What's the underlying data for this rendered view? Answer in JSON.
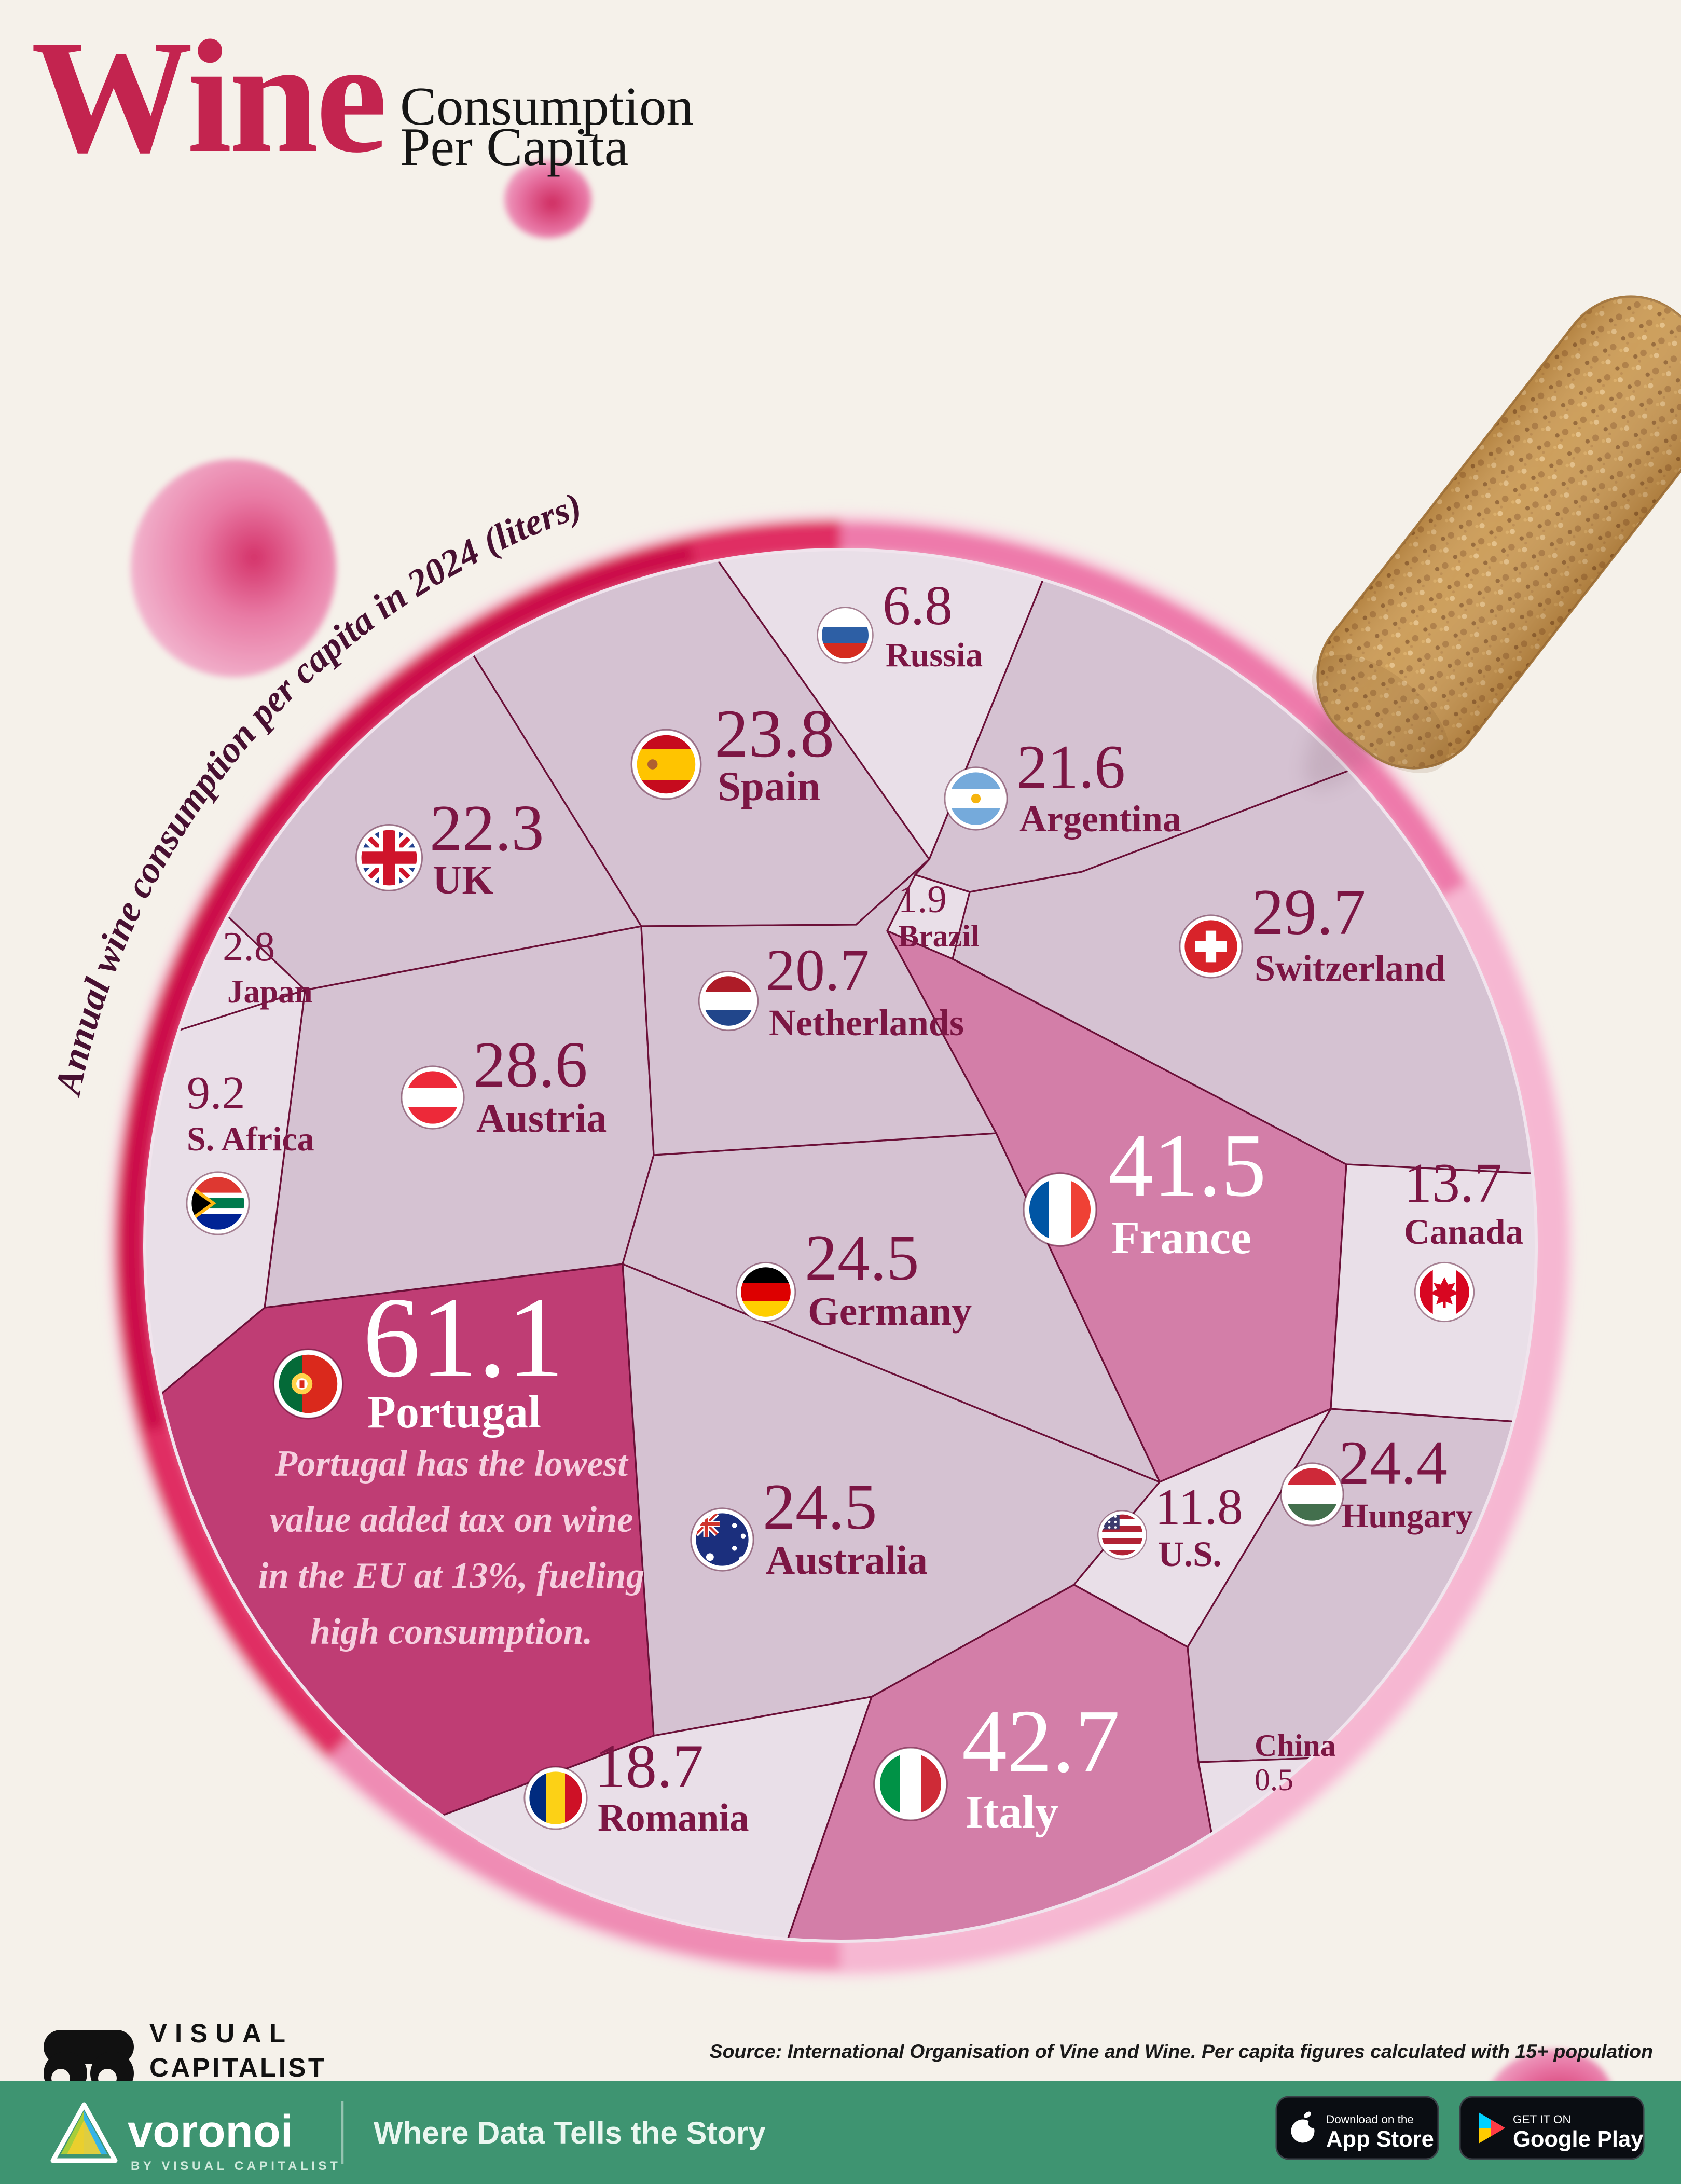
{
  "title": {
    "word": "Wine",
    "line1": "Consumption",
    "line2": "Per Capita"
  },
  "subtitle": "Annual wine consumption per capita in 2024 (liters)",
  "annotation": {
    "lines": [
      "Portugal has the lowest",
      "value added tax on wine",
      "in the EU at 13%, fueling",
      "high consumption."
    ]
  },
  "colors": {
    "cell_mauve": "#d5c2d2",
    "cell_light": "#e9dfe8",
    "cell_pink": "#d37ea8",
    "cell_dark": "#bf3d74",
    "label": "#7c1644",
    "label_light": "#ffffff",
    "border": "#6b1038",
    "ring_deep": "#c90f47",
    "ring_mid": "#ee7aab",
    "ring_light": "#f6b7d2",
    "bar_green": "#3e9471",
    "cork": "#c9974f",
    "title_red": "#c3244f"
  },
  "chart_data": {
    "type": "voronoi",
    "title": "Wine Consumption Per Capita",
    "subtitle": "Annual wine consumption per capita in 2024 (liters)",
    "unit": "liters per capita",
    "year": "2024",
    "source": "International Organisation of Vine and Wine",
    "annotation": "Portugal has the lowest value added tax on wine in the EU at 13%, fueling high consumption.",
    "countries": [
      {
        "id": "portugal",
        "name": "Portugal",
        "value": 61.1,
        "fill": "cell_dark",
        "text": "light"
      },
      {
        "id": "italy",
        "name": "Italy",
        "value": 42.7,
        "fill": "cell_pink",
        "text": "light"
      },
      {
        "id": "france",
        "name": "France",
        "value": 41.5,
        "fill": "cell_pink",
        "text": "light"
      },
      {
        "id": "switzerland",
        "name": "Switzerland",
        "value": 29.7,
        "fill": "cell_mauve",
        "text": "dark"
      },
      {
        "id": "austria",
        "name": "Austria",
        "value": 28.6,
        "fill": "cell_mauve",
        "text": "dark"
      },
      {
        "id": "australia",
        "name": "Australia",
        "value": 24.5,
        "fill": "cell_mauve",
        "text": "dark"
      },
      {
        "id": "germany",
        "name": "Germany",
        "value": 24.5,
        "fill": "cell_mauve",
        "text": "dark"
      },
      {
        "id": "hungary",
        "name": "Hungary",
        "value": 24.4,
        "fill": "cell_mauve",
        "text": "dark"
      },
      {
        "id": "spain",
        "name": "Spain",
        "value": 23.8,
        "fill": "cell_mauve",
        "text": "dark"
      },
      {
        "id": "uk",
        "name": "UK",
        "value": 22.3,
        "fill": "cell_mauve",
        "text": "dark"
      },
      {
        "id": "argentina",
        "name": "Argentina",
        "value": 21.6,
        "fill": "cell_mauve",
        "text": "dark"
      },
      {
        "id": "netherlands",
        "name": "Netherlands",
        "value": 20.7,
        "fill": "cell_mauve",
        "text": "dark"
      },
      {
        "id": "romania",
        "name": "Romania",
        "value": 18.7,
        "fill": "cell_light",
        "text": "dark"
      },
      {
        "id": "canada",
        "name": "Canada",
        "value": 13.7,
        "fill": "cell_light",
        "text": "dark"
      },
      {
        "id": "us",
        "name": "U.S.",
        "value": 11.8,
        "fill": "cell_light",
        "text": "dark"
      },
      {
        "id": "s_africa",
        "name": "S. Africa",
        "value": 9.2,
        "fill": "cell_light",
        "text": "dark"
      },
      {
        "id": "russia",
        "name": "Russia",
        "value": 6.8,
        "fill": "cell_light",
        "text": "dark"
      },
      {
        "id": "japan",
        "name": "Japan",
        "value": 2.8,
        "fill": "cell_light",
        "text": "dark"
      },
      {
        "id": "brazil",
        "name": "Brazil",
        "value": 1.9,
        "fill": "cell_light",
        "text": "dark"
      },
      {
        "id": "china",
        "name": "China",
        "value": 0.5,
        "fill": "cell_light",
        "text": "dark"
      }
    ]
  },
  "footer": {
    "logo_line1": "VISUAL",
    "logo_line2": "CAPITALIST",
    "source": "Source: International Organisation of Vine and Wine. Per capita figures calculated with 15+ population",
    "bar": {
      "brand": "voronoi",
      "byline": "BY VISUAL CAPITALIST",
      "tagline": "Where Data Tells the Story",
      "appstore_small": "Download on the",
      "appstore_big": "App Store",
      "gplay_small": "GET IT ON",
      "gplay_big": "Google Play"
    }
  }
}
